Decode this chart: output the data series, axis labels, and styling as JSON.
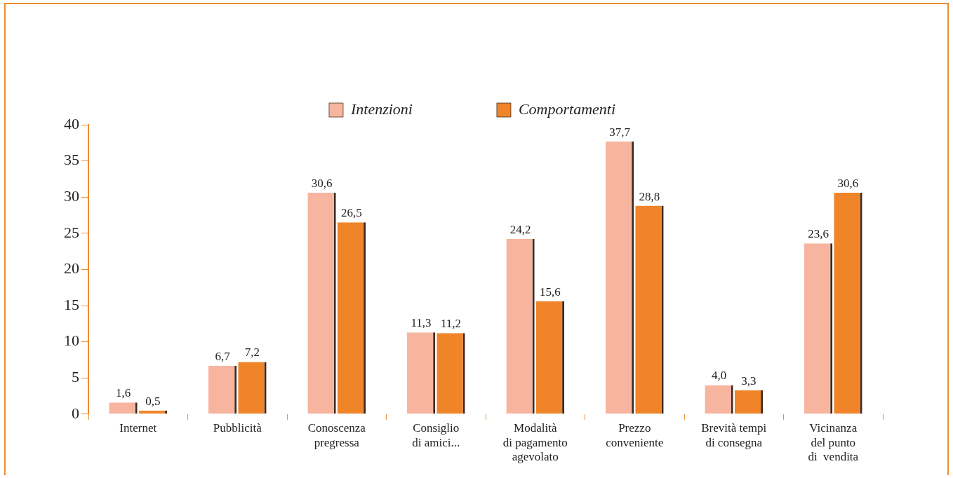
{
  "chart_data": {
    "type": "bar",
    "categories": [
      "Internet",
      "Pubblicità",
      "Conoscenza\npregressa",
      "Consiglio\ndi amici...",
      "Modalità\ndi pagamento\nagevolato",
      "Prezzo\nconveniente",
      "Brevità tempi\ndi consegna",
      "Vicinanza\ndel punto\ndi  vendita"
    ],
    "series": [
      {
        "name": "Intenzioni",
        "color": "#f7b5a0",
        "values": [
          1.6,
          6.7,
          30.6,
          11.3,
          24.2,
          37.7,
          4.0,
          23.6
        ],
        "value_labels": [
          "1,6",
          "6,7",
          "30,6",
          "11,3",
          "24,2",
          "37,7",
          "4,0",
          "23,6"
        ]
      },
      {
        "name": "Comportamenti",
        "color": "#f08428",
        "values": [
          0.5,
          7.2,
          26.5,
          11.2,
          15.6,
          28.8,
          3.3,
          30.6
        ],
        "value_labels": [
          "0,5",
          "7,2",
          "26,5",
          "11,2",
          "15,6",
          "28,8",
          "3,3",
          "30,6"
        ]
      }
    ],
    "ylim": [
      0,
      40
    ],
    "yticks": [
      0,
      5,
      10,
      15,
      20,
      25,
      30,
      35,
      40
    ],
    "grid": false,
    "legend": "top"
  }
}
